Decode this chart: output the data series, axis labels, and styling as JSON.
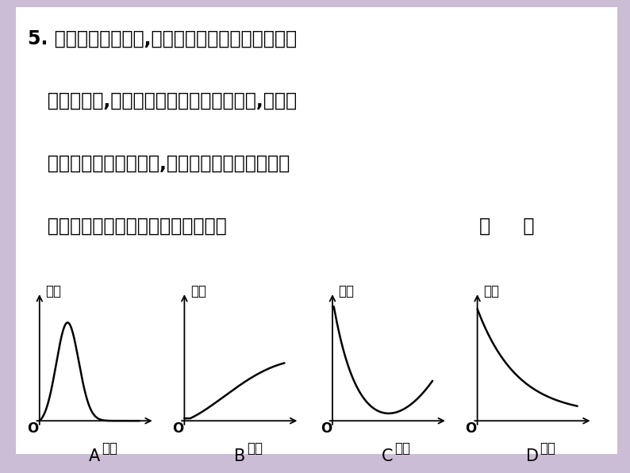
{
  "background_color": "#cbbdd6",
  "box_color": "#ffffff",
  "text_color": "#000000",
  "title_line1": "5. 已知某种野生动物,原来由于人们的滥捕滥杀数量",
  "title_line2": "   一直在减少,现在我国加强了对它们的保护,该野生",
  "title_line3": "   动物的数量在逐渐增加,下列图象能够体现这种野",
  "title_line4": "   生动物的数量和时间的对应关系的是",
  "answer_parens": "（     ）",
  "graph_labels": [
    "A",
    "B",
    "C",
    "D"
  ],
  "xlabel": "时间",
  "ylabel": "数量",
  "origin_label": "O",
  "curve_color": "#000000",
  "axis_color": "#000000",
  "font_size_text": 17,
  "font_size_small": 12,
  "font_size_graph_letter": 15
}
